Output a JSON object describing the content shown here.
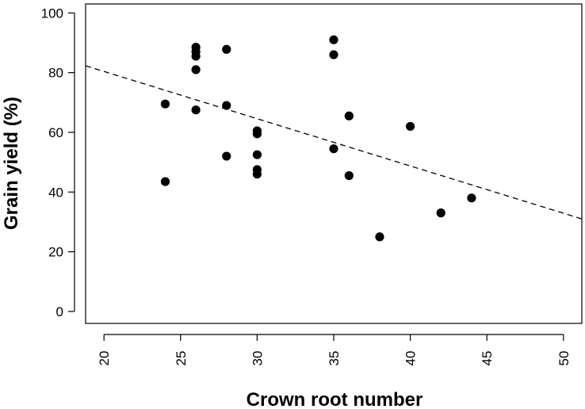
{
  "chart_data": {
    "type": "scatter",
    "xlabel": "Crown root number",
    "ylabel": "Grain yield (%)",
    "xlim": [
      18.8,
      51.2
    ],
    "ylim": [
      -4,
      103
    ],
    "xticks": [
      20,
      25,
      30,
      35,
      40,
      45,
      50
    ],
    "yticks": [
      0,
      20,
      40,
      60,
      80,
      100
    ],
    "grid": false,
    "points": [
      {
        "x": 24,
        "y": 69.5
      },
      {
        "x": 24,
        "y": 43.5
      },
      {
        "x": 26,
        "y": 88.5
      },
      {
        "x": 26,
        "y": 87
      },
      {
        "x": 26,
        "y": 85.5
      },
      {
        "x": 26,
        "y": 81
      },
      {
        "x": 26,
        "y": 67.5
      },
      {
        "x": 28,
        "y": 87.8
      },
      {
        "x": 28,
        "y": 69
      },
      {
        "x": 28,
        "y": 52
      },
      {
        "x": 30,
        "y": 60.5
      },
      {
        "x": 30,
        "y": 59.5
      },
      {
        "x": 30,
        "y": 52.5
      },
      {
        "x": 30,
        "y": 47.5
      },
      {
        "x": 30,
        "y": 46
      },
      {
        "x": 35,
        "y": 91
      },
      {
        "x": 35,
        "y": 86
      },
      {
        "x": 35,
        "y": 54.5
      },
      {
        "x": 36,
        "y": 65.5
      },
      {
        "x": 36,
        "y": 45.5
      },
      {
        "x": 38,
        "y": 25
      },
      {
        "x": 40,
        "y": 62
      },
      {
        "x": 42,
        "y": 33
      },
      {
        "x": 44,
        "y": 38
      }
    ],
    "trendline": {
      "style": "dashed",
      "x": [
        18.8,
        51.2
      ],
      "y": [
        82.3,
        31.0
      ]
    }
  }
}
